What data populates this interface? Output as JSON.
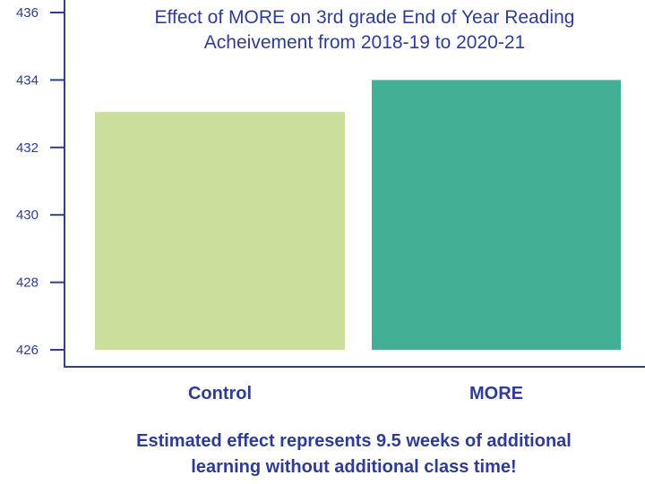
{
  "chart_data": {
    "type": "bar",
    "title_lines": [
      "Effect of MORE on 3rd grade End of Year Reading",
      "Acheivement from 2018-19 to 2020-21"
    ],
    "categories": [
      "Control",
      "MORE"
    ],
    "values": [
      433.05,
      434.0
    ],
    "bar_colors": [
      "#C9DF9B",
      "#43AF94"
    ],
    "ylim": [
      426,
      436
    ],
    "yticks": [
      426,
      428,
      430,
      432,
      434,
      436
    ],
    "grid": false,
    "axis_color": "#2E3C96",
    "xlabel": "",
    "ylabel": ""
  },
  "footnote_lines": [
    "Estimated effect represents 9.5 weeks of additional",
    "learning without additional class time!"
  ]
}
